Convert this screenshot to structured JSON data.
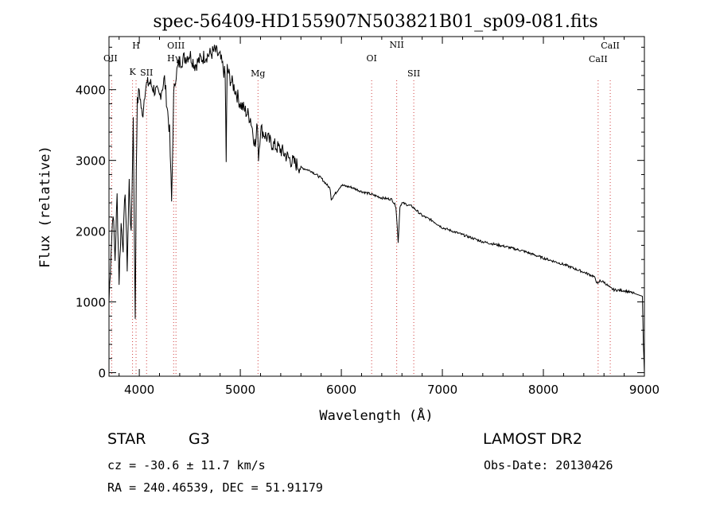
{
  "chart_data": {
    "type": "line",
    "title": "spec-56409-HD155907N503821B01_sp09-081.fits",
    "xlabel": "Wavelength (Å)",
    "ylabel": "Flux (relative)",
    "xlim": [
      3700,
      9000
    ],
    "ylim": [
      -50,
      4750
    ],
    "x_ticks": [
      "4000",
      "5000",
      "6000",
      "7000",
      "8000",
      "9000"
    ],
    "y_ticks": [
      "0",
      "1000",
      "2000",
      "3000",
      "4000"
    ],
    "x_tick_values": [
      4000,
      5000,
      6000,
      7000,
      8000,
      9000
    ],
    "y_tick_values": [
      0,
      1000,
      2000,
      3000,
      4000
    ],
    "series": [
      {
        "x": [
          3700,
          3720,
          3740,
          3760,
          3780,
          3800,
          3820,
          3840,
          3860,
          3880,
          3900,
          3920,
          3940,
          3960,
          3970,
          3980,
          4000,
          4030,
          4060,
          4100,
          4150,
          4200,
          4250,
          4300,
          4320,
          4340,
          4360,
          4400,
          4450,
          4500,
          4550,
          4600,
          4650,
          4700,
          4750,
          4800,
          4850,
          4860,
          4870,
          4900,
          4950,
          5000,
          5050,
          5100,
          5150,
          5170,
          5180,
          5200,
          5250,
          5300,
          5400,
          5500,
          5600,
          5700,
          5800,
          5890,
          5900,
          6000,
          6100,
          6200,
          6300,
          6400,
          6500,
          6540,
          6563,
          6580,
          6600,
          6700,
          6800,
          6900,
          7000,
          7200,
          7400,
          7600,
          7800,
          8000,
          8200,
          8400,
          8500,
          8540,
          8560,
          8600,
          8660,
          8700,
          8800,
          8900,
          8980,
          8990,
          9000
        ],
        "y": [
          1000,
          1700,
          2300,
          1600,
          2500,
          1300,
          2100,
          1800,
          2600,
          1500,
          2700,
          1900,
          3600,
          700,
          2900,
          3800,
          4000,
          3600,
          4050,
          4100,
          4000,
          3900,
          4150,
          3400,
          2400,
          3900,
          4200,
          4400,
          4450,
          4500,
          4350,
          4420,
          4480,
          4500,
          4550,
          4450,
          4200,
          3000,
          4300,
          4150,
          4000,
          3800,
          3700,
          3600,
          3200,
          3550,
          3050,
          3450,
          3350,
          3250,
          3150,
          3000,
          2900,
          2850,
          2750,
          2600,
          2450,
          2650,
          2620,
          2560,
          2520,
          2470,
          2450,
          2350,
          1850,
          2350,
          2400,
          2350,
          2220,
          2150,
          2050,
          1950,
          1850,
          1790,
          1720,
          1620,
          1530,
          1420,
          1360,
          1250,
          1300,
          1280,
          1200,
          1170,
          1160,
          1120,
          1080,
          400,
          0
        ]
      }
    ],
    "lines": [
      {
        "label": "OII",
        "x": 3727
      },
      {
        "label": "H",
        "x": 3968
      },
      {
        "label": "K",
        "x": 3933
      },
      {
        "label": "SII",
        "x": 4072
      },
      {
        "label": "OIII",
        "x": 4363
      },
      {
        "label": "Hγ",
        "x": 4340
      },
      {
        "label": "Mg",
        "x": 5175
      },
      {
        "label": "OI",
        "x": 6300
      },
      {
        "label": "NII",
        "x": 6548
      },
      {
        "label": "SII",
        "x": 6717
      },
      {
        "label": "CaII",
        "x": 8542
      },
      {
        "label": "CaII",
        "x": 8662
      }
    ]
  },
  "footer": {
    "class_label": "STAR",
    "subclass": "G3",
    "survey": "LAMOST DR2",
    "cz": "cz = -30.6 ± 11.7 km/s",
    "obs_date": "Obs-Date: 20130426",
    "radec": "RA = 240.46539, DEC =  51.91179"
  }
}
